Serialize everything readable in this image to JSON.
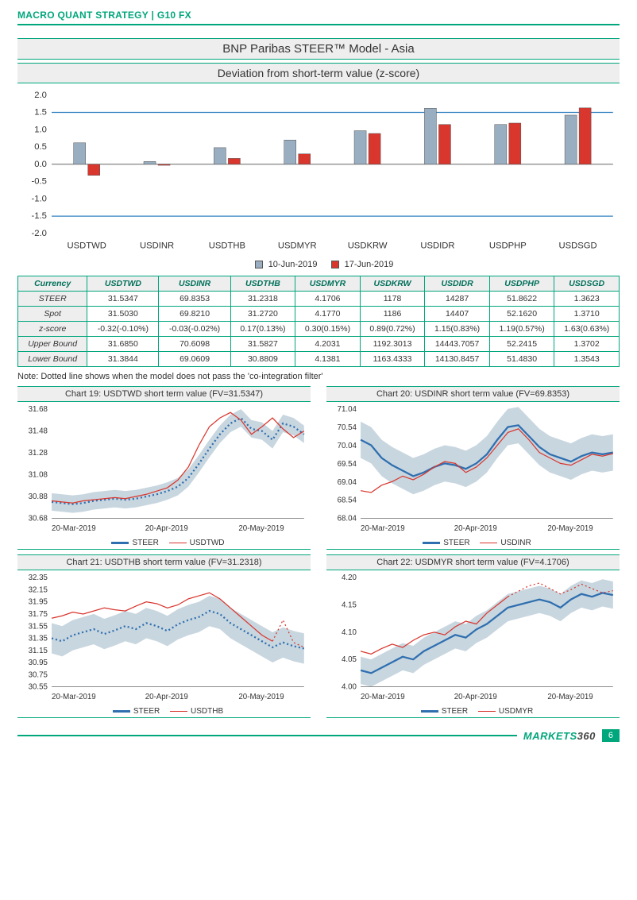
{
  "header": "MACRO QUANT STRATEGY | G10 FX",
  "main_title": "BNP Paribas STEER™ Model - Asia",
  "sub_title": "Deviation from short-term value (z-score)",
  "bar_chart": {
    "type": "bar",
    "categories": [
      "USDTWD",
      "USDINR",
      "USDTHB",
      "USDMYR",
      "USDKRW",
      "USDIDR",
      "USDPHP",
      "USDSGD"
    ],
    "series": [
      {
        "name": "10-Jun-2019",
        "color": "#9aaec2",
        "values": [
          0.62,
          0.08,
          0.48,
          0.7,
          0.97,
          1.62,
          1.15,
          1.42
        ]
      },
      {
        "name": "17-Jun-2019",
        "color": "#d9362e",
        "values": [
          -0.32,
          -0.03,
          0.17,
          0.3,
          0.89,
          1.15,
          1.19,
          1.63
        ]
      }
    ],
    "ylim": [
      -2.0,
      2.0
    ],
    "ytick_step": 0.5,
    "ref_lines": [
      1.5,
      -1.5
    ],
    "ref_line_color": "#3080c0",
    "axis_color": "#666",
    "label_fontsize": 11,
    "tick_fontsize": 11,
    "bar_width": 0.34
  },
  "legend_s1": "10-Jun-2019",
  "legend_s2": "17-Jun-2019",
  "table": {
    "columns": [
      "Currency",
      "USDTWD",
      "USDINR",
      "USDTHB",
      "USDMYR",
      "USDKRW",
      "USDIDR",
      "USDPHP",
      "USDSGD"
    ],
    "rows": [
      [
        "STEER",
        "31.5347",
        "69.8353",
        "31.2318",
        "4.1706",
        "1178",
        "14287",
        "51.8622",
        "1.3623"
      ],
      [
        "Spot",
        "31.5030",
        "69.8210",
        "31.2720",
        "4.1770",
        "1186",
        "14407",
        "52.1620",
        "1.3710"
      ],
      [
        "z-score",
        "-0.32(-0.10%)",
        "-0.03(-0.02%)",
        "0.17(0.13%)",
        "0.30(0.15%)",
        "0.89(0.72%)",
        "1.15(0.83%)",
        "1.19(0.57%)",
        "1.63(0.63%)"
      ],
      [
        "Upper Bound",
        "31.6850",
        "70.6098",
        "31.5827",
        "4.2031",
        "1192.3013",
        "14443.7057",
        "52.2415",
        "1.3702"
      ],
      [
        "Lower Bound",
        "31.3844",
        "69.0609",
        "30.8809",
        "4.1381",
        "1163.4333",
        "14130.8457",
        "51.4830",
        "1.3543"
      ]
    ]
  },
  "note": "Note: Dotted line shows when the model does not pass the 'co-integration filter'",
  "mini_charts": [
    {
      "title": "Chart 19: USDTWD short term value (FV=31.5347)",
      "x_labels": [
        "20-Mar-2019",
        "20-Apr-2019",
        "20-May-2019"
      ],
      "ylim": [
        30.68,
        31.68
      ],
      "ytick_step": 0.2,
      "steer_color": "#2f6fb0",
      "spot_color": "#d9362e",
      "band_color": "#9ab4c4",
      "steer": [
        30.83,
        30.82,
        30.81,
        30.82,
        30.84,
        30.85,
        30.86,
        30.85,
        30.86,
        30.88,
        30.9,
        30.93,
        30.97,
        31.05,
        31.18,
        31.32,
        31.45,
        31.55,
        31.6,
        31.5,
        31.48,
        31.4,
        31.55,
        31.52,
        31.45
      ],
      "spot": [
        30.84,
        30.83,
        30.82,
        30.84,
        30.85,
        30.86,
        30.87,
        30.86,
        30.88,
        30.9,
        30.93,
        30.96,
        31.03,
        31.15,
        31.35,
        31.52,
        31.6,
        31.65,
        31.58,
        31.45,
        31.52,
        31.6,
        31.5,
        31.42,
        31.48
      ],
      "band_half": 0.08,
      "steer_dotted_from": 0,
      "spot_dotted_from": null,
      "legend": [
        "STEER",
        "USDTWD"
      ]
    },
    {
      "title": "Chart 20: USDINR short term value (FV=69.8353)",
      "x_labels": [
        "20-Mar-2019",
        "20-Apr-2019",
        "20-May-2019"
      ],
      "ylim": [
        68.04,
        71.04
      ],
      "ytick_step": 0.5,
      "steer_color": "#2f6fb0",
      "spot_color": "#d9362e",
      "band_color": "#9ab4c4",
      "steer": [
        70.2,
        70.05,
        69.7,
        69.5,
        69.35,
        69.2,
        69.3,
        69.45,
        69.55,
        69.5,
        69.4,
        69.55,
        69.8,
        70.2,
        70.55,
        70.6,
        70.3,
        70.0,
        69.8,
        69.7,
        69.6,
        69.75,
        69.85,
        69.8,
        69.85
      ],
      "spot": [
        68.8,
        68.75,
        68.95,
        69.05,
        69.2,
        69.1,
        69.25,
        69.45,
        69.6,
        69.55,
        69.3,
        69.45,
        69.7,
        70.05,
        70.4,
        70.5,
        70.2,
        69.85,
        69.7,
        69.55,
        69.5,
        69.65,
        69.8,
        69.75,
        69.82
      ],
      "band_half": 0.5,
      "steer_dotted_from": null,
      "spot_dotted_from": null,
      "legend": [
        "STEER",
        "USDINR"
      ]
    },
    {
      "title": "Chart 21: USDTHB short term value (FV=31.2318)",
      "x_labels": [
        "20-Mar-2019",
        "20-Apr-2019",
        "20-May-2019"
      ],
      "ylim": [
        30.55,
        32.35
      ],
      "ytick_step": 0.2,
      "steer_color": "#2f6fb0",
      "spot_color": "#d9362e",
      "band_color": "#9ab4c4",
      "steer": [
        31.35,
        31.3,
        31.4,
        31.45,
        31.5,
        31.42,
        31.48,
        31.55,
        31.5,
        31.6,
        31.55,
        31.47,
        31.58,
        31.65,
        31.7,
        31.8,
        31.75,
        31.6,
        31.5,
        31.4,
        31.3,
        31.2,
        31.28,
        31.22,
        31.18
      ],
      "spot": [
        31.68,
        31.72,
        31.78,
        31.75,
        31.8,
        31.85,
        31.82,
        31.8,
        31.88,
        31.95,
        31.92,
        31.85,
        31.9,
        32.0,
        32.05,
        32.1,
        32.0,
        31.85,
        31.7,
        31.55,
        31.4,
        31.3,
        31.65,
        31.28,
        31.2
      ],
      "band_half": 0.25,
      "steer_dotted_from": 0,
      "spot_dotted_from": 21,
      "legend": [
        "STEER",
        "USDTHB"
      ]
    },
    {
      "title": "Chart 22: USDMYR short term value (FV=4.1706)",
      "x_labels": [
        "20-Mar-2019",
        "20-Apr-2019",
        "20-May-2019"
      ],
      "ylim": [
        4.0,
        4.2
      ],
      "ytick_step": 0.05,
      "steer_color": "#2f6fb0",
      "spot_color": "#d9362e",
      "band_color": "#9ab4c4",
      "steer": [
        4.03,
        4.025,
        4.035,
        4.045,
        4.055,
        4.05,
        4.065,
        4.075,
        4.085,
        4.095,
        4.09,
        4.105,
        4.115,
        4.13,
        4.145,
        4.15,
        4.155,
        4.16,
        4.155,
        4.145,
        4.16,
        4.17,
        4.165,
        4.172,
        4.168
      ],
      "spot": [
        4.065,
        4.06,
        4.07,
        4.078,
        4.072,
        4.085,
        4.095,
        4.1,
        4.095,
        4.11,
        4.12,
        4.115,
        4.135,
        4.15,
        4.165,
        4.175,
        4.185,
        4.19,
        4.18,
        4.17,
        4.178,
        4.188,
        4.18,
        4.172,
        4.176
      ],
      "band_half": 0.025,
      "steer_dotted_from": null,
      "spot_dotted_from": 14,
      "legend": [
        "STEER",
        "USDMYR"
      ]
    }
  ],
  "footer": {
    "brand_left": "MARKETS",
    "brand_right": "360",
    "page": "6"
  },
  "colors": {
    "brand": "#00a67c",
    "grid": "#e0e0e0",
    "subtitle_bg": "#eeeeee"
  }
}
